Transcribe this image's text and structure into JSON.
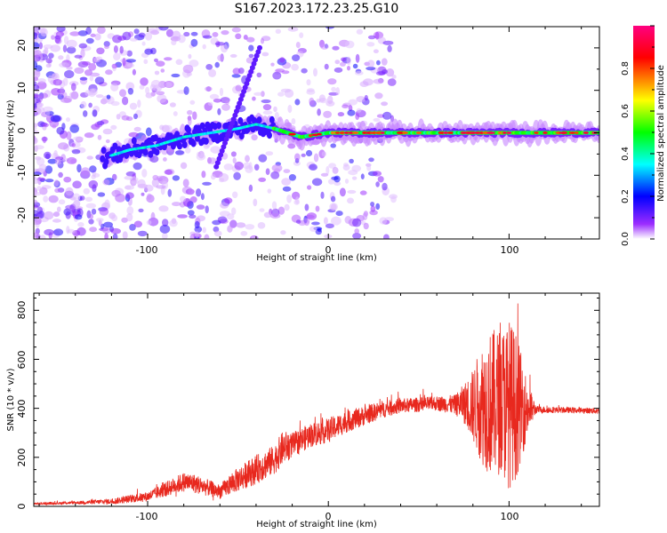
{
  "title": "S167.2023.172.23.25.G10",
  "chart_data": [
    {
      "type": "heatmap",
      "xlabel": "Height of straight line (km)",
      "ylabel": "Frequency (Hz)",
      "xlim": [
        -163,
        150
      ],
      "ylim": [
        -25,
        25
      ],
      "x_ticks": [
        "-100",
        "0",
        "100"
      ],
      "y_ticks": [
        "-20",
        "-10",
        "0",
        "10",
        "20"
      ],
      "colorbar": {
        "label": "Normalized spectral amplitude",
        "range": [
          0,
          1
        ],
        "ticks": [
          "0.0",
          "0.2",
          "0.4",
          "0.6",
          "0.8"
        ],
        "colors": [
          "#ffffff",
          "#7b00ff",
          "#0000ff",
          "#00ffff",
          "#00ff00",
          "#ffff00",
          "#ff0000",
          "#ff0080"
        ]
      },
      "ridge": [
        {
          "x": -125,
          "y": -6
        },
        {
          "x": -110,
          "y": -4
        },
        {
          "x": -95,
          "y": -3
        },
        {
          "x": -80,
          "y": -1
        },
        {
          "x": -65,
          "y": 0
        },
        {
          "x": -50,
          "y": 1
        },
        {
          "x": -40,
          "y": 2
        },
        {
          "x": -30,
          "y": 1
        },
        {
          "x": -15,
          "y": -1
        },
        {
          "x": 0,
          "y": 0
        },
        {
          "x": 20,
          "y": 0
        },
        {
          "x": 50,
          "y": 0
        },
        {
          "x": 75,
          "y": 0
        },
        {
          "x": 90,
          "y": 0
        },
        {
          "x": 110,
          "y": 0
        },
        {
          "x": 150,
          "y": 0
        }
      ]
    },
    {
      "type": "line",
      "xlabel": "Height of straight line (km)",
      "ylabel": "SNR (10 * v/v)",
      "xlim": [
        -163,
        150
      ],
      "ylim": [
        0,
        870
      ],
      "x_ticks": [
        "-100",
        "0",
        "100"
      ],
      "y_ticks": [
        "0",
        "200",
        "400",
        "600",
        "800"
      ],
      "color": "#e8281e",
      "series": [
        {
          "x": [
            -163,
            -140,
            -120,
            -100,
            -90,
            -80,
            -75,
            -60,
            -50,
            -40,
            -30,
            -25,
            -20,
            -10,
            0,
            10,
            20,
            30,
            40,
            50,
            60,
            70,
            75,
            80,
            85,
            90,
            95,
            100,
            104,
            110,
            115,
            130,
            150
          ],
          "y": [
            10,
            15,
            20,
            40,
            70,
            100,
            95,
            60,
            110,
            150,
            190,
            240,
            250,
            290,
            310,
            345,
            370,
            395,
            410,
            415,
            420,
            415,
            420,
            410,
            420,
            420,
            430,
            420,
            410,
            400,
            395,
            393,
            390
          ],
          "spread": [
            4,
            6,
            12,
            20,
            30,
            40,
            40,
            30,
            50,
            60,
            60,
            70,
            50,
            50,
            50,
            45,
            40,
            35,
            30,
            30,
            30,
            40,
            80,
            150,
            250,
            300,
            300,
            350,
            300,
            120,
            15,
            12,
            12
          ]
        }
      ]
    }
  ]
}
